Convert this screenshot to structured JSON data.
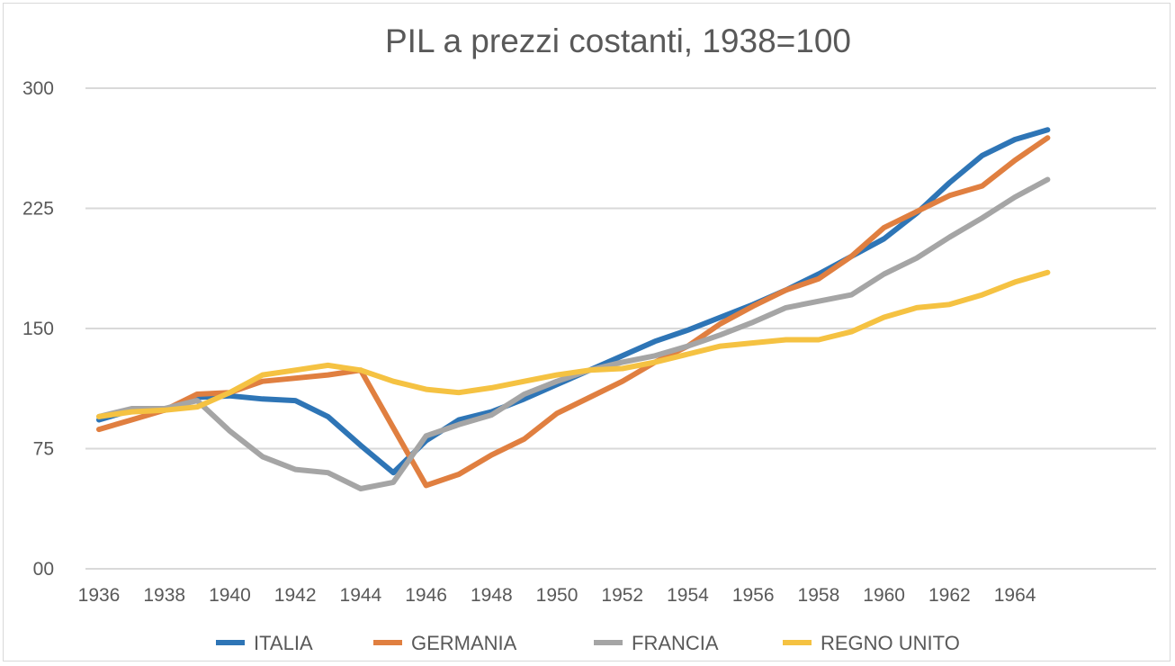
{
  "chart_data": {
    "type": "line",
    "title": "PIL a prezzi costanti, 1938=100",
    "xlabel": "",
    "ylabel": "",
    "ylim": [
      0,
      300
    ],
    "yticks": [
      0,
      75,
      150,
      225,
      300
    ],
    "ytick_labels": [
      "00",
      "75",
      "150",
      "225",
      "300"
    ],
    "xtick_labels": [
      "1936",
      "1938",
      "1940",
      "1942",
      "1944",
      "1946",
      "1948",
      "1950",
      "1952",
      "1954",
      "1956",
      "1958",
      "1960",
      "1962",
      "1964"
    ],
    "x": [
      1936,
      1937,
      1938,
      1939,
      1940,
      1941,
      1942,
      1943,
      1944,
      1945,
      1946,
      1947,
      1948,
      1949,
      1950,
      1951,
      1952,
      1953,
      1954,
      1955,
      1956,
      1957,
      1958,
      1959,
      1960,
      1961,
      1962,
      1963,
      1964,
      1965
    ],
    "grid": true,
    "legend_position": "bottom",
    "series": [
      {
        "name": "ITALIA",
        "color": "#2E75B6",
        "values": [
          93,
          99,
          99,
          107,
          108,
          106,
          105,
          95,
          77,
          60,
          80,
          93,
          98,
          106,
          115,
          124,
          133,
          142,
          149,
          157,
          165,
          174,
          184,
          195,
          206,
          222,
          241,
          258,
          268,
          274
        ]
      },
      {
        "name": "GERMANIA",
        "color": "#E07F40",
        "values": [
          87,
          93,
          99,
          109,
          110,
          117,
          119,
          121,
          124,
          88,
          52,
          59,
          71,
          81,
          97,
          107,
          117,
          129,
          139,
          153,
          164,
          174,
          181,
          195,
          213,
          223,
          233,
          239,
          255,
          269
        ]
      },
      {
        "name": "FRANCIA",
        "color": "#A5A5A5",
        "values": [
          95,
          100,
          100,
          105,
          86,
          70,
          62,
          60,
          50,
          54,
          83,
          90,
          96,
          109,
          117,
          124,
          129,
          133,
          139,
          146,
          154,
          163,
          167,
          171,
          184,
          194,
          207,
          219,
          232,
          243
        ]
      },
      {
        "name": "REGNO UNITO",
        "color": "#F5C242",
        "values": [
          95,
          98,
          99,
          101,
          110,
          121,
          124,
          127,
          124,
          117,
          112,
          110,
          113,
          117,
          121,
          124,
          125,
          129,
          134,
          139,
          141,
          143,
          143,
          148,
          157,
          163,
          165,
          171,
          179,
          185
        ]
      }
    ]
  }
}
